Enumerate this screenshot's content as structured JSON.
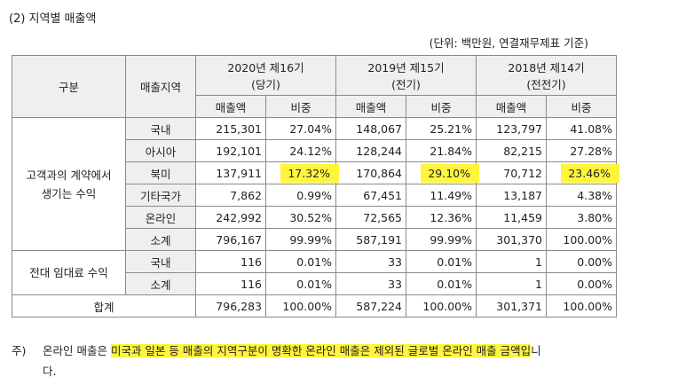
{
  "title": "(2) 지역별 매출액",
  "unit": "(단위: 백만원, 연결재무제표 기준)",
  "header": {
    "category": "구분",
    "region": "매출지역",
    "years": [
      {
        "line1": "2020년 제16기",
        "line2": "(당기)"
      },
      {
        "line1": "2019년 제15기",
        "line2": "(전기)"
      },
      {
        "line1": "2018년 제14기",
        "line2": "(전전기)"
      }
    ],
    "sales": "매출액",
    "ratio": "비중"
  },
  "groups": [
    {
      "label_line1": "고객과의 계약에서",
      "label_line2": "생기는 수익",
      "rows": [
        {
          "region": "국내",
          "v": [
            "215,301",
            "27.04%",
            "148,067",
            "25.21%",
            "123,797",
            "41.08%"
          ]
        },
        {
          "region": "아시아",
          "v": [
            "192,101",
            "24.12%",
            "128,244",
            "21.84%",
            "82,215",
            "27.28%"
          ]
        },
        {
          "region": "북미",
          "v": [
            "137,911",
            "17.32%",
            "170,864",
            "29.10%",
            "70,712",
            "23.46%"
          ]
        },
        {
          "region": "기타국가",
          "v": [
            "7,862",
            "0.99%",
            "67,451",
            "11.49%",
            "13,187",
            "4.38%"
          ]
        },
        {
          "region": "온라인",
          "v": [
            "242,992",
            "30.52%",
            "72,565",
            "12.36%",
            "11,459",
            "3.80%"
          ]
        },
        {
          "region": "소계",
          "v": [
            "796,167",
            "99.99%",
            "587,191",
            "99.99%",
            "301,370",
            "100.00%"
          ]
        }
      ]
    },
    {
      "label_line1": "전대 임대료 수익",
      "rows": [
        {
          "region": "국내",
          "v": [
            "116",
            "0.01%",
            "33",
            "0.01%",
            "1",
            "0.00%"
          ]
        },
        {
          "region": "소계",
          "v": [
            "116",
            "0.01%",
            "33",
            "0.01%",
            "1",
            "0.00%"
          ]
        }
      ]
    }
  ],
  "total": {
    "label": "합계",
    "v": [
      "796,283",
      "100.00%",
      "587,224",
      "100.00%",
      "301,371",
      "100.00%"
    ]
  },
  "note": {
    "mark": "주)",
    "pre": "온라인 매출은 ",
    "highlight": "미국과 일본 등 매출의 지역구분이 명확한 온라인 매출은 제외된 글로벌 온라인 매출 금액입",
    "post": "니",
    "line2": "다."
  },
  "colors": {
    "highlight": "#fff53d",
    "header_bg": "#efefef",
    "border": "#8a8a8a"
  }
}
